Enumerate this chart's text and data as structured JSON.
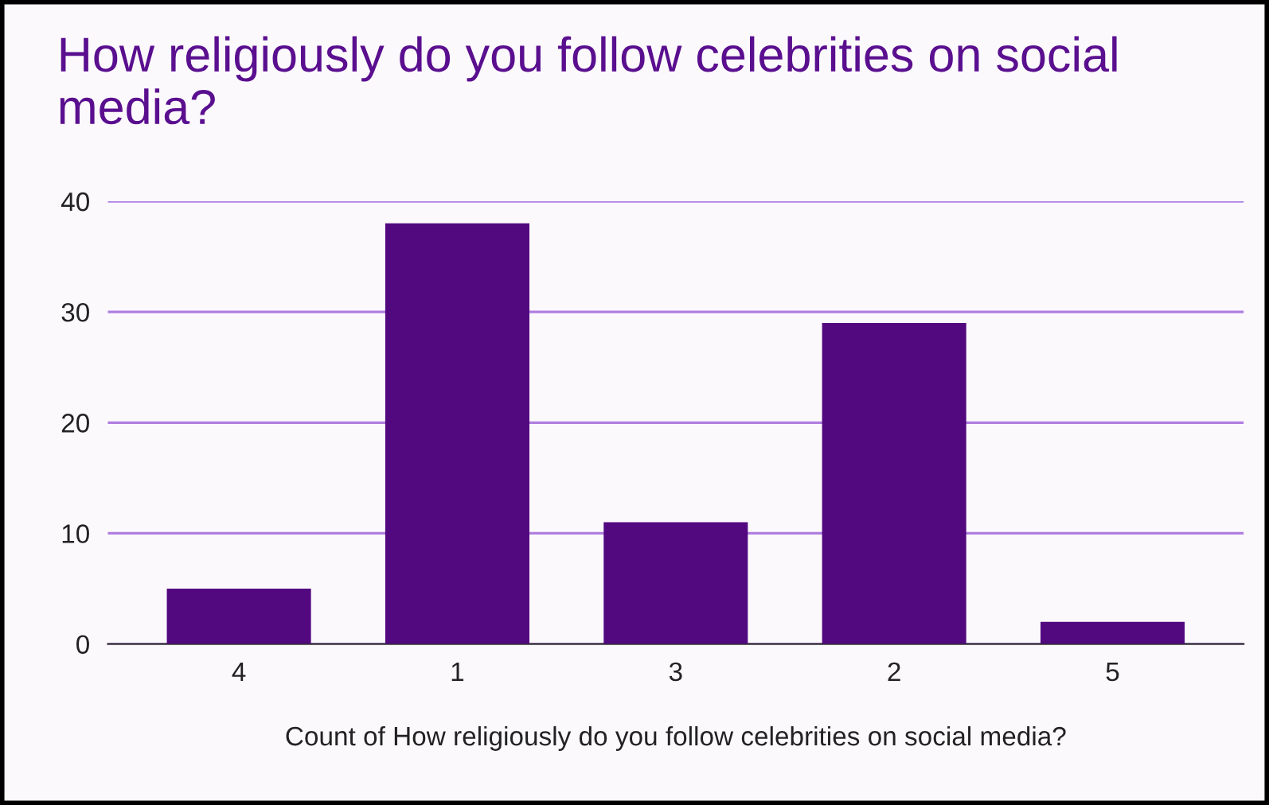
{
  "chart_data": {
    "type": "bar",
    "title": "How religiously do you follow celebrities on social media?",
    "xlabel": "Count of How religiously do you follow celebrities on social media?",
    "categories": [
      "4",
      "1",
      "3",
      "2",
      "5"
    ],
    "values": [
      5,
      38,
      11,
      29,
      2
    ],
    "color": "#52087f",
    "ylim": [
      0,
      40
    ],
    "yticks": [
      0,
      10,
      20,
      30,
      40
    ],
    "grid": "y",
    "legend": false
  }
}
